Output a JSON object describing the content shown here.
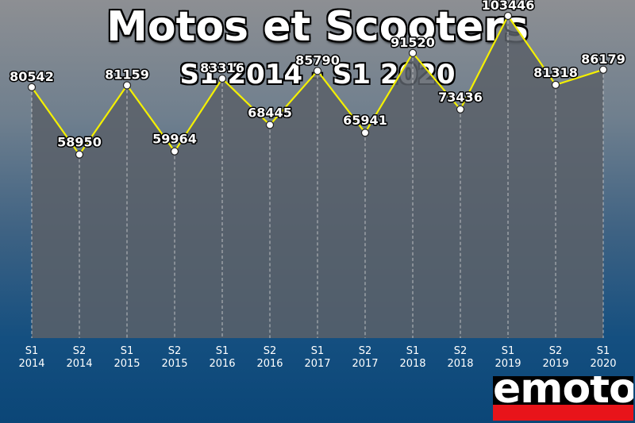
{
  "title": "Motos et Scooters",
  "subtitle": "S1 2014 - S1 2020",
  "logo": "emoto",
  "colors": {
    "line": "#f4f000",
    "area": "#5a6068",
    "point": "#ffffff",
    "grid": "#d8d8d8"
  },
  "chart_data": {
    "type": "area",
    "title": "Motos et Scooters",
    "subtitle": "S1 2014 - S1 2020",
    "categories": [
      [
        "S1",
        "2014"
      ],
      [
        "S2",
        "2014"
      ],
      [
        "S1",
        "2015"
      ],
      [
        "S2",
        "2015"
      ],
      [
        "S1",
        "2016"
      ],
      [
        "S2",
        "2016"
      ],
      [
        "S1",
        "2017"
      ],
      [
        "S2",
        "2017"
      ],
      [
        "S1",
        "2018"
      ],
      [
        "S2",
        "2018"
      ],
      [
        "S1",
        "2019"
      ],
      [
        "S2",
        "2019"
      ],
      [
        "S1",
        "2020"
      ]
    ],
    "values": [
      80542,
      58950,
      81159,
      59964,
      83316,
      68445,
      85790,
      65941,
      91520,
      73436,
      103446,
      81318,
      86179
    ],
    "ylim": [
      0,
      106000
    ],
    "grid": "vertical dashed lines at each category",
    "data_labels": true
  }
}
